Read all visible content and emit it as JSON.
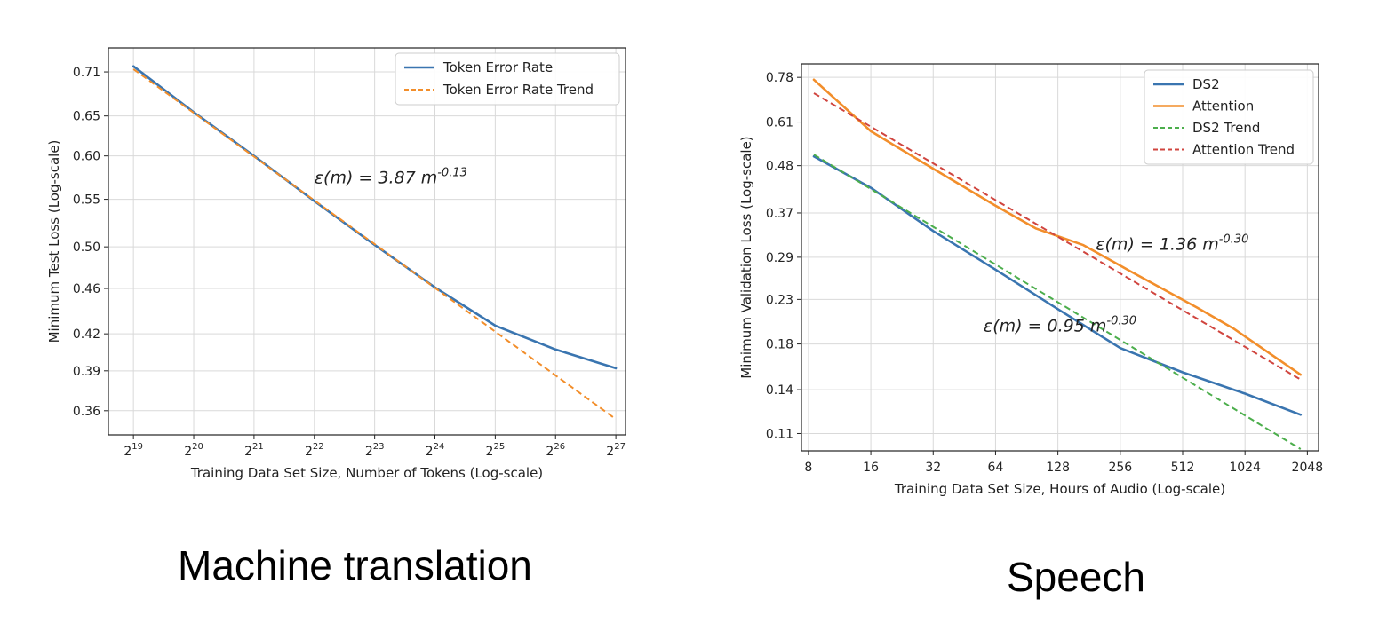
{
  "captions": {
    "left": "Machine translation",
    "right": "Speech"
  },
  "colors": {
    "blue": "#3a75b0",
    "orange": "#f28e2b",
    "green": "#4cae4c",
    "red": "#d0453f",
    "grid": "#d9d9d9",
    "axis": "#222222"
  },
  "chart_data": [
    {
      "type": "line",
      "title": "",
      "xlabel": "Training Data Set Size, Number of Tokens (Log-scale)",
      "ylabel": "Minimum Test Loss (Log-scale)",
      "x_scale": "log2",
      "y_scale": "log",
      "xlim": [
        393216,
        150000000
      ],
      "ylim": [
        0.343,
        0.745
      ],
      "grid": true,
      "legend_position": "top-right",
      "x_ticks": [
        524288,
        1048576,
        2097152,
        4194304,
        8388608,
        16777216,
        33554432,
        67108864,
        134217728
      ],
      "x_tick_labels": [
        [
          "2",
          "19"
        ],
        [
          "2",
          "20"
        ],
        [
          "2",
          "21"
        ],
        [
          "2",
          "22"
        ],
        [
          "2",
          "23"
        ],
        [
          "2",
          "24"
        ],
        [
          "2",
          "25"
        ],
        [
          "2",
          "26"
        ],
        [
          "2",
          "27"
        ]
      ],
      "y_ticks": [
        0.71,
        0.65,
        0.6,
        0.55,
        0.5,
        0.46,
        0.42,
        0.39,
        0.36
      ],
      "y_tick_labels": [
        "0.71",
        "0.65",
        "0.60",
        "0.55",
        "0.50",
        "0.46",
        "0.42",
        "0.39",
        "0.36"
      ],
      "series": [
        {
          "name": "Token Error Rate",
          "color": "#3a75b0",
          "dashed": false,
          "x": [
            524288,
            1048576,
            2097152,
            4194304,
            8388608,
            16777216,
            33554432,
            67108864,
            134217728
          ],
          "y": [
            0.718,
            0.655,
            0.6,
            0.548,
            0.502,
            0.461,
            0.427,
            0.407,
            0.392
          ]
        },
        {
          "name": "Token Error Rate Trend",
          "color": "#f28e2b",
          "dashed": true,
          "x": [
            524288,
            134217728
          ],
          "y": [
            0.714,
            0.354
          ]
        }
      ],
      "annotations": [
        {
          "base": "ε(m) = 3.87 m",
          "exp": "-0.13",
          "x": 4194304,
          "y": 0.568
        }
      ]
    },
    {
      "type": "line",
      "title": "",
      "xlabel": "Training Data Set Size, Hours of Audio (Log-scale)",
      "ylabel": "Minimum Validation Loss (Log-scale)",
      "x_scale": "log2",
      "y_scale": "log",
      "xlim": [
        7.4,
        2320
      ],
      "ylim": [
        0.1,
        0.84
      ],
      "grid": true,
      "legend_position": "top-right",
      "x_ticks": [
        8,
        16,
        32,
        64,
        128,
        256,
        512,
        1024,
        2048
      ],
      "x_tick_labels": [
        [
          "8",
          ""
        ],
        [
          "16",
          ""
        ],
        [
          "32",
          ""
        ],
        [
          "64",
          ""
        ],
        [
          "128",
          ""
        ],
        [
          "256",
          ""
        ],
        [
          "512",
          ""
        ],
        [
          "1024",
          ""
        ],
        [
          "2048",
          ""
        ]
      ],
      "y_ticks": [
        0.78,
        0.61,
        0.48,
        0.37,
        0.29,
        0.23,
        0.18,
        0.14,
        0.11
      ],
      "y_tick_labels": [
        "0.78",
        "0.61",
        "0.48",
        "0.37",
        "0.29",
        "0.23",
        "0.18",
        "0.14",
        "0.11"
      ],
      "series": [
        {
          "name": "DS2",
          "color": "#3a75b0",
          "dashed": false,
          "x": [
            8.5,
            16,
            32,
            64,
            128,
            256,
            512,
            1024,
            1900
          ],
          "y": [
            0.505,
            0.425,
            0.335,
            0.271,
            0.218,
            0.176,
            0.154,
            0.137,
            0.122
          ]
        },
        {
          "name": "Attention",
          "color": "#f28e2b",
          "dashed": false,
          "x": [
            8.5,
            16,
            32,
            64,
            100,
            170,
            300,
            600,
            900,
            1900
          ],
          "y": [
            0.77,
            0.58,
            0.472,
            0.385,
            0.34,
            0.31,
            0.265,
            0.22,
            0.196,
            0.152
          ]
        },
        {
          "name": "DS2 Trend",
          "color": "#4cae4c",
          "dashed": true,
          "x": [
            8.5,
            1900
          ],
          "y": [
            0.51,
            0.101
          ]
        },
        {
          "name": "Attention Trend",
          "color": "#d0453f",
          "dashed": true,
          "x": [
            8.5,
            1900
          ],
          "y": [
            0.715,
            0.148
          ]
        }
      ],
      "annotations": [
        {
          "base": "ε(m) = 1.36 m",
          "exp": "-0.30",
          "x": 195,
          "y": 0.302
        },
        {
          "base": "ε(m) = 0.95 m",
          "exp": "-0.30",
          "x": 56,
          "y": 0.193
        }
      ]
    }
  ]
}
